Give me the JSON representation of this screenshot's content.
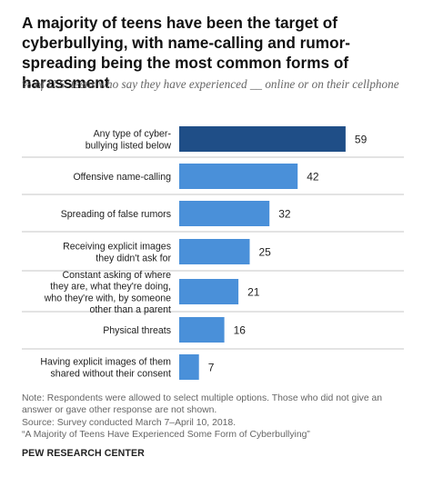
{
  "header": {
    "title": "A majority of teens have been the target of cyberbullying, with name-calling and rumor-spreading being the most common forms of harassment",
    "subtitle": "% of U.S. teens who say they have experienced __ online or on their cellphone"
  },
  "chart_data": {
    "type": "bar",
    "orientation": "horizontal",
    "title": "A majority of teens have been the target of cyberbullying, with name-calling and rumor-spreading being the most common forms of harassment",
    "subtitle": "% of U.S. teens who say they have experienced __ online or on their cellphone",
    "xlabel": "",
    "ylabel": "",
    "categories": [
      [
        "Any type of cyber-",
        "bullying listed below"
      ],
      [
        "Offensive name-calling"
      ],
      [
        "Spreading of false rumors"
      ],
      [
        "Receiving explicit images",
        "they didn't ask for"
      ],
      [
        "Constant asking of where",
        "they are, what they're doing,",
        "who they're with, by someone",
        "other than a parent"
      ],
      [
        "Physical threats"
      ],
      [
        "Having explicit images of them",
        "shared without their consent"
      ]
    ],
    "values": [
      59,
      42,
      32,
      25,
      21,
      16,
      7
    ],
    "value_labels": [
      "59",
      "42",
      "32",
      "25",
      "21",
      "16",
      "7"
    ],
    "xlim": [
      0,
      100
    ],
    "grid": false,
    "legend": "none",
    "colors": {
      "highlight": "#1f4e87",
      "bar": "#4a90d9",
      "divider": "#b5b5b5"
    }
  },
  "footer": {
    "note": "Note: Respondents were allowed to select multiple options. Those who did not give an answer or gave other response are not shown.",
    "source": "Source: Survey conducted March 7–April 10, 2018.",
    "report": "“A Majority of Teens Have Experienced Some Form of Cyberbullying”",
    "org": "PEW RESEARCH CENTER"
  }
}
